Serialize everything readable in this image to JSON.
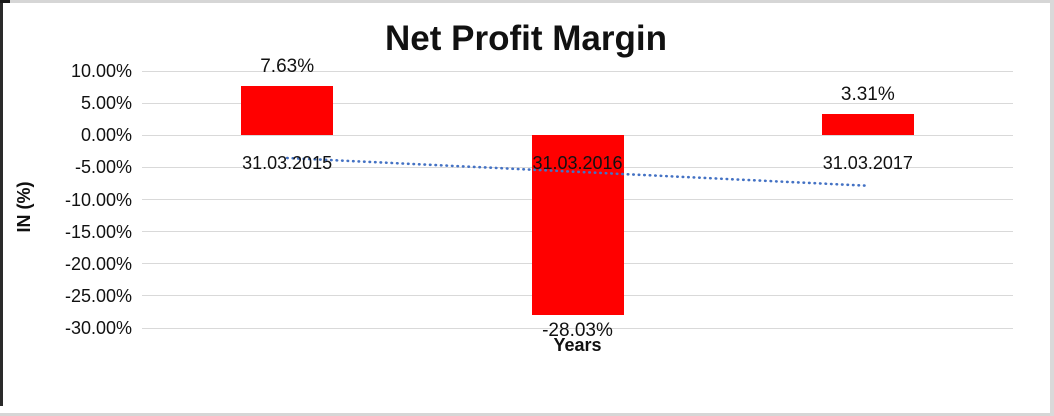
{
  "chart_data": {
    "type": "bar",
    "title": "Net Profit Margin",
    "xlabel": "Years",
    "ylabel": "IN (%)",
    "categories": [
      "31.03.2015",
      "31.03.2016",
      "31.03.2017"
    ],
    "values": [
      7.63,
      -28.03,
      3.31
    ],
    "value_labels": [
      "7.63%",
      "-28.03%",
      "3.31%"
    ],
    "ylim": [
      -30,
      10
    ],
    "ytick_step": 5,
    "ytick_labels": [
      "10.00%",
      "5.00%",
      "0.00%",
      "-5.00%",
      "-10.00%",
      "-15.00%",
      "-20.00%",
      "-25.00%",
      "-30.00%"
    ],
    "ytick_values": [
      10,
      5,
      0,
      -5,
      -10,
      -15,
      -20,
      -25,
      -30
    ],
    "grid": true,
    "legend_position": "none",
    "bar_color": "#FF0000",
    "gridline_color": "#D9D9D9",
    "text_color": "#111111",
    "trendline": {
      "type": "linear",
      "style": "dotted",
      "color": "#4472C4",
      "start_value": -3.54,
      "end_value": -7.86
    }
  }
}
